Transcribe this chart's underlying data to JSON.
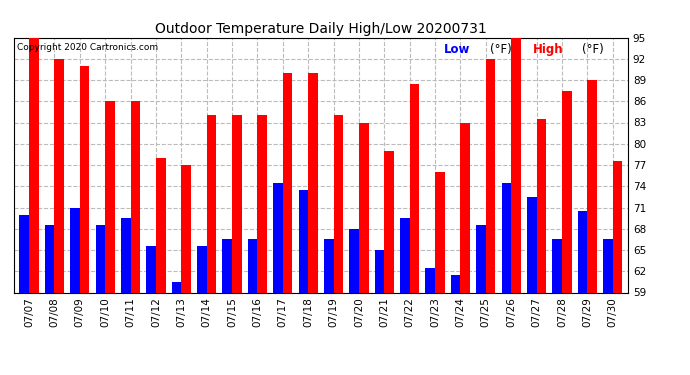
{
  "title": "Outdoor Temperature Daily High/Low 20200731",
  "copyright": "Copyright 2020 Cartronics.com",
  "low_color": "#0000ff",
  "high_color": "#ff0000",
  "background_color": "#ffffff",
  "grid_color": "#bbbbbb",
  "ylim": [
    59.0,
    95.0
  ],
  "yticks": [
    59.0,
    62.0,
    65.0,
    68.0,
    71.0,
    74.0,
    77.0,
    80.0,
    83.0,
    86.0,
    89.0,
    92.0,
    95.0
  ],
  "dates": [
    "07/07",
    "07/08",
    "07/09",
    "07/10",
    "07/11",
    "07/12",
    "07/13",
    "07/14",
    "07/15",
    "07/16",
    "07/17",
    "07/18",
    "07/19",
    "07/20",
    "07/21",
    "07/22",
    "07/23",
    "07/24",
    "07/25",
    "07/26",
    "07/27",
    "07/28",
    "07/29",
    "07/30"
  ],
  "highs": [
    95.0,
    92.0,
    91.0,
    86.0,
    86.0,
    78.0,
    77.0,
    84.0,
    84.0,
    84.0,
    90.0,
    90.0,
    84.0,
    83.0,
    79.0,
    88.5,
    76.0,
    83.0,
    92.0,
    95.0,
    83.5,
    87.5,
    89.0,
    77.5
  ],
  "lows": [
    70.0,
    68.5,
    71.0,
    68.5,
    69.5,
    65.5,
    60.5,
    65.5,
    66.5,
    66.5,
    74.5,
    73.5,
    66.5,
    68.0,
    65.0,
    69.5,
    62.5,
    61.5,
    68.5,
    74.5,
    72.5,
    66.5,
    70.5,
    66.5
  ],
  "title_fontsize": 10,
  "tick_fontsize": 7.5,
  "legend_fontsize": 8.5
}
